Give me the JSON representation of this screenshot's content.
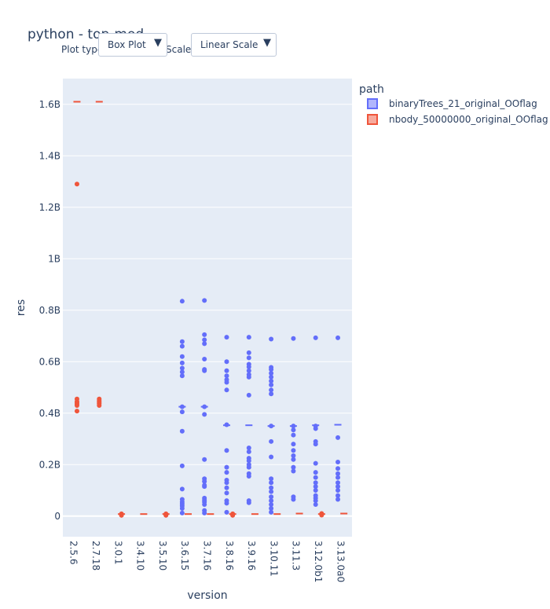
{
  "header": {
    "title": "python - top-mod",
    "plot_type_label": "Plot type:",
    "plot_type_value": "Box Plot",
    "scale_label": "Scale:",
    "scale_value": "Linear Scale",
    "dropdown_arrow": "▼"
  },
  "chart_data": {
    "type": "box",
    "xlabel": "version",
    "ylabel": "res",
    "categories": [
      "2.5.6",
      "2.7.18",
      "3.0.1",
      "3.4.10",
      "3.5.10",
      "3.6.15",
      "3.7.16",
      "3.8.16",
      "3.9.16",
      "3.10.11",
      "3.11.3",
      "3.12.0b1",
      "3.13.0a0"
    ],
    "ylim": [
      -80000000,
      1700000000
    ],
    "yticks": [
      0,
      200000000,
      400000000,
      600000000,
      800000000,
      1000000000,
      1200000000,
      1400000000,
      1600000000
    ],
    "ytick_labels": [
      "0",
      "0.2B",
      "0.4B",
      "0.6B",
      "0.8B",
      "1B",
      "1.2B",
      "1.4B",
      "1.6B"
    ],
    "grid": true,
    "legend": {
      "title": "path",
      "placement": "top-right"
    },
    "colors": {
      "binaryTrees_21_original_OOflag": "#636efa",
      "nbody_50000000_original_OOflag": "#ef553b"
    },
    "series": [
      {
        "name": "binaryTrees_21_original_OOflag",
        "medians": {
          "3.6.15": 425000000,
          "3.7.16": 425000000,
          "3.8.16": 353000000,
          "3.9.16": 353000000,
          "3.10.11": 350000000,
          "3.11.3": 350000000,
          "3.12.0b1": 353000000,
          "3.13.0a0": 355000000
        },
        "points": {
          "3.6.15": [
            835000000,
            678000000,
            660000000,
            620000000,
            595000000,
            575000000,
            560000000,
            545000000,
            425000000,
            405000000,
            330000000,
            195000000,
            105000000,
            65000000,
            55000000,
            48000000,
            40000000,
            30000000,
            12000000
          ],
          "3.7.16": [
            838000000,
            705000000,
            685000000,
            670000000,
            610000000,
            570000000,
            565000000,
            425000000,
            395000000,
            220000000,
            145000000,
            135000000,
            120000000,
            115000000,
            70000000,
            62000000,
            55000000,
            45000000,
            22000000,
            12000000
          ],
          "3.8.16": [
            695000000,
            600000000,
            565000000,
            545000000,
            530000000,
            520000000,
            490000000,
            355000000,
            255000000,
            190000000,
            170000000,
            140000000,
            130000000,
            110000000,
            90000000,
            60000000,
            50000000,
            15000000
          ],
          "3.9.16": [
            695000000,
            635000000,
            615000000,
            590000000,
            580000000,
            565000000,
            550000000,
            540000000,
            470000000,
            265000000,
            250000000,
            225000000,
            215000000,
            200000000,
            190000000,
            165000000,
            155000000,
            60000000,
            52000000
          ],
          "3.10.11": [
            688000000,
            578000000,
            570000000,
            555000000,
            540000000,
            525000000,
            510000000,
            490000000,
            475000000,
            350000000,
            290000000,
            230000000,
            145000000,
            130000000,
            110000000,
            95000000,
            75000000,
            60000000,
            45000000,
            30000000,
            15000000
          ],
          "3.11.3": [
            690000000,
            350000000,
            335000000,
            315000000,
            280000000,
            255000000,
            235000000,
            220000000,
            190000000,
            175000000,
            75000000,
            65000000
          ],
          "3.12.0b1": [
            693000000,
            350000000,
            340000000,
            290000000,
            280000000,
            205000000,
            170000000,
            150000000,
            130000000,
            115000000,
            100000000,
            80000000,
            70000000,
            60000000,
            45000000
          ],
          "3.13.0a0": [
            693000000,
            305000000,
            210000000,
            185000000,
            165000000,
            150000000,
            130000000,
            115000000,
            100000000,
            80000000,
            65000000
          ]
        }
      },
      {
        "name": "nbody_50000000_original_OOflag",
        "medians": {
          "2.5.6": 1610000000,
          "2.7.18": 1610000000,
          "3.0.1": 8000000,
          "3.4.10": 8000000,
          "3.5.10": 8000000,
          "3.6.15": 8000000,
          "3.7.16": 8000000,
          "3.8.16": 8000000,
          "3.9.16": 8000000,
          "3.10.11": 8000000,
          "3.11.3": 10000000,
          "3.12.0b1": 8000000,
          "3.13.0a0": 10000000
        },
        "points": {
          "2.5.6": [
            1290000000,
            455000000,
            445000000,
            440000000,
            435000000,
            430000000,
            408000000
          ],
          "2.7.18": [
            455000000,
            448000000,
            442000000,
            437000000,
            430000000
          ],
          "3.0.1": [
            9000000,
            6000000,
            3000000
          ],
          "3.5.10": [
            9000000,
            6000000,
            3000000
          ],
          "3.8.16": [
            9000000,
            6000000,
            3000000
          ],
          "3.12.0b1": [
            10000000,
            7000000,
            4000000
          ]
        }
      }
    ]
  }
}
